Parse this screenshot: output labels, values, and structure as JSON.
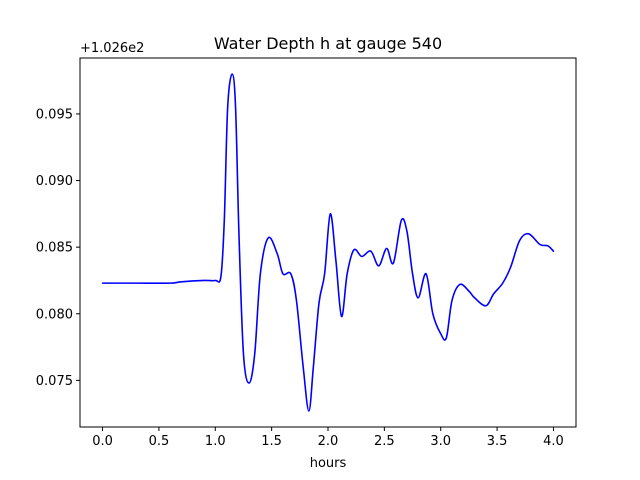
{
  "chart_data": {
    "type": "line",
    "title": "Water Depth h at gauge 540",
    "xlabel": "hours",
    "ylabel": "",
    "y_offset_label": "+1.026e2",
    "y_offset": 102.6,
    "xlim": [
      -0.2,
      4.2
    ],
    "ylim": [
      0.0715,
      0.0992
    ],
    "x_ticks": [
      0.0,
      0.5,
      1.0,
      1.5,
      2.0,
      2.5,
      3.0,
      3.5,
      4.0
    ],
    "x_tick_labels": [
      "0.0",
      "0.5",
      "1.0",
      "1.5",
      "2.0",
      "2.5",
      "3.0",
      "3.5",
      "4.0"
    ],
    "y_ticks": [
      0.075,
      0.08,
      0.085,
      0.09,
      0.095
    ],
    "y_tick_labels": [
      "0.075",
      "0.080",
      "0.085",
      "0.090",
      "0.095"
    ],
    "grid": false,
    "series": [
      {
        "color": "#0000ff",
        "points": [
          [
            0.0,
            0.0823
          ],
          [
            0.3,
            0.0823
          ],
          [
            0.6,
            0.0823
          ],
          [
            0.7,
            0.0824
          ],
          [
            0.9,
            0.0825
          ],
          [
            1.0,
            0.0825
          ],
          [
            1.05,
            0.0828
          ],
          [
            1.08,
            0.087
          ],
          [
            1.11,
            0.0955
          ],
          [
            1.15,
            0.098
          ],
          [
            1.18,
            0.0955
          ],
          [
            1.21,
            0.086
          ],
          [
            1.25,
            0.077
          ],
          [
            1.3,
            0.0748
          ],
          [
            1.35,
            0.077
          ],
          [
            1.4,
            0.083
          ],
          [
            1.47,
            0.0857
          ],
          [
            1.55,
            0.0845
          ],
          [
            1.6,
            0.083
          ],
          [
            1.67,
            0.083
          ],
          [
            1.72,
            0.081
          ],
          [
            1.78,
            0.076
          ],
          [
            1.83,
            0.0727
          ],
          [
            1.87,
            0.076
          ],
          [
            1.92,
            0.0808
          ],
          [
            1.97,
            0.083
          ],
          [
            2.02,
            0.0875
          ],
          [
            2.07,
            0.084
          ],
          [
            2.12,
            0.0798
          ],
          [
            2.17,
            0.083
          ],
          [
            2.23,
            0.0848
          ],
          [
            2.3,
            0.0843
          ],
          [
            2.38,
            0.0847
          ],
          [
            2.45,
            0.0836
          ],
          [
            2.52,
            0.0849
          ],
          [
            2.58,
            0.0838
          ],
          [
            2.65,
            0.087
          ],
          [
            2.7,
            0.0862
          ],
          [
            2.75,
            0.083
          ],
          [
            2.8,
            0.0812
          ],
          [
            2.87,
            0.083
          ],
          [
            2.93,
            0.08
          ],
          [
            3.0,
            0.0785
          ],
          [
            3.05,
            0.0782
          ],
          [
            3.1,
            0.081
          ],
          [
            3.17,
            0.0822
          ],
          [
            3.25,
            0.0817
          ],
          [
            3.3,
            0.0812
          ],
          [
            3.4,
            0.0806
          ],
          [
            3.47,
            0.0815
          ],
          [
            3.55,
            0.0823
          ],
          [
            3.62,
            0.0835
          ],
          [
            3.7,
            0.0855
          ],
          [
            3.78,
            0.086
          ],
          [
            3.88,
            0.0852
          ],
          [
            3.95,
            0.0851
          ],
          [
            4.0,
            0.0847
          ]
        ]
      }
    ]
  }
}
